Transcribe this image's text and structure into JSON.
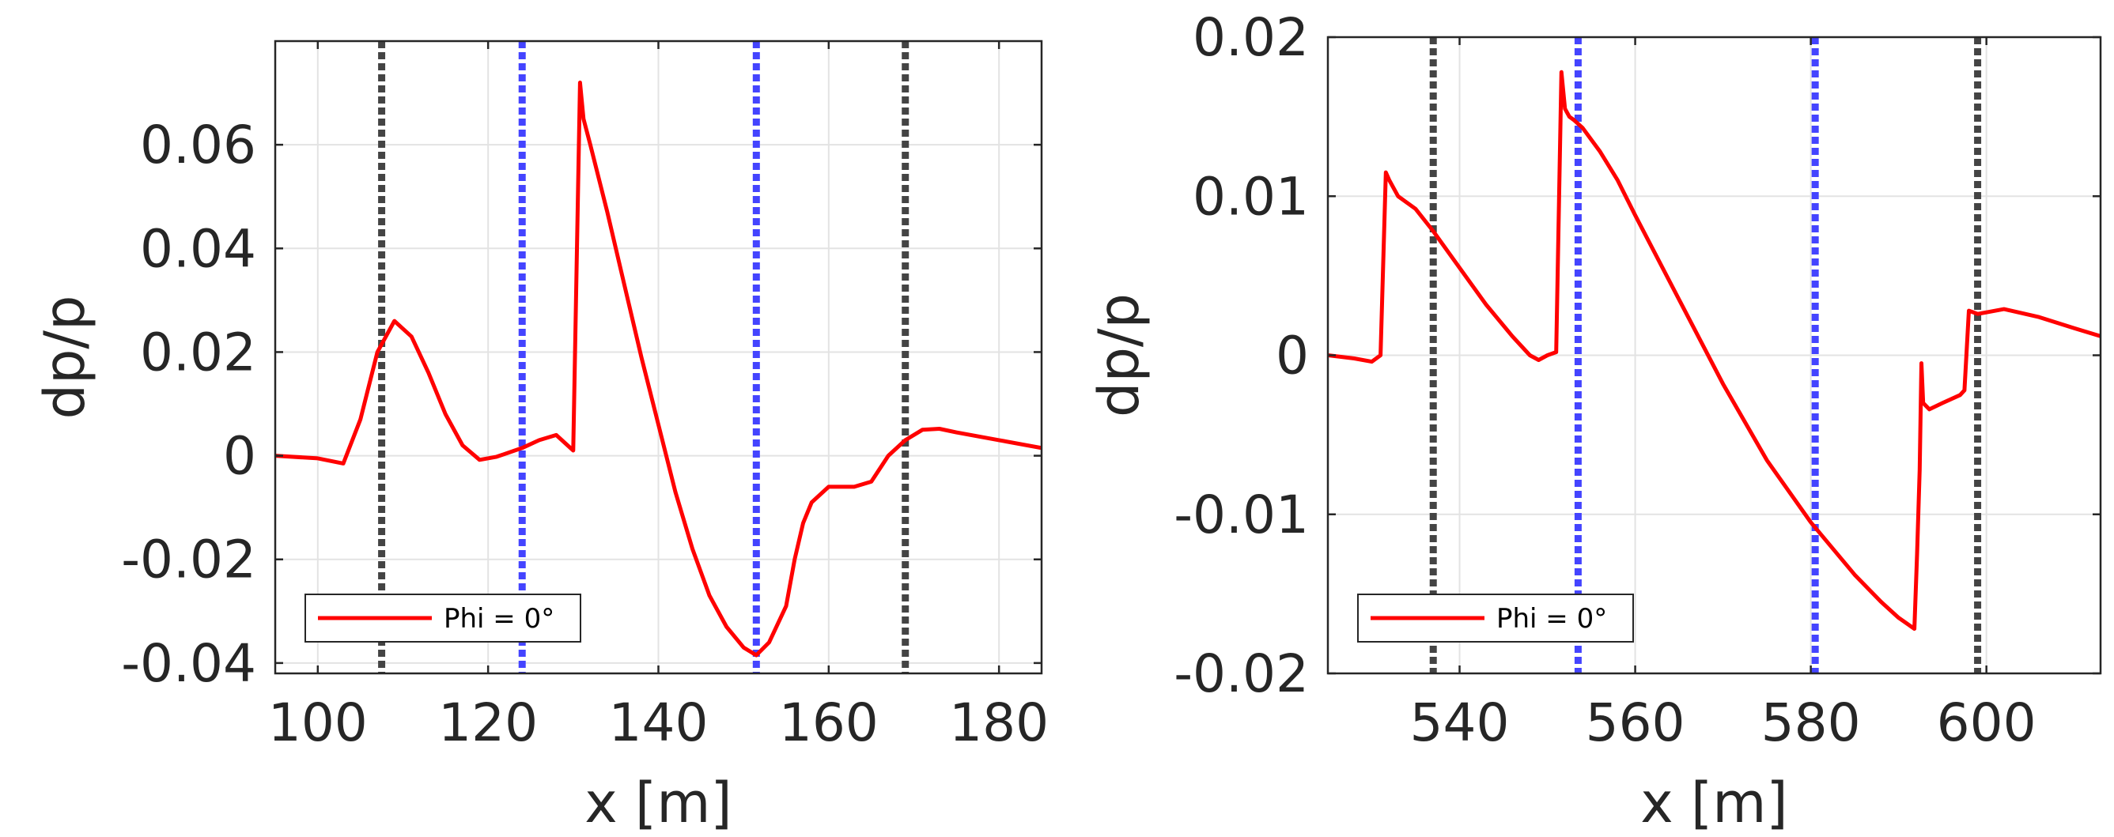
{
  "chart_data": [
    {
      "type": "line",
      "xlabel": "x [m]",
      "ylabel": "dp/p",
      "xlim": [
        95,
        185
      ],
      "ylim": [
        -0.042,
        0.08
      ],
      "xticks": [
        100,
        120,
        140,
        160,
        180
      ],
      "xtick_labels": [
        "100",
        "120",
        "140",
        "160",
        "180"
      ],
      "yticks": [
        -0.04,
        -0.02,
        0,
        0.02,
        0.04,
        0.06
      ],
      "ytick_labels": [
        "-0.04",
        "-0.02",
        "0",
        "0.02",
        "0.04",
        "0.06"
      ],
      "grid": true,
      "legend": {
        "location": "bottom-left",
        "entries": [
          "Phi = 0°"
        ]
      },
      "series": [
        {
          "name": "Phi = 0°",
          "color": "#ff0000",
          "x": [
            95,
            100,
            103,
            105,
            107,
            109,
            111,
            113,
            115,
            117,
            119,
            121,
            124,
            126,
            128,
            130,
            130.8,
            131.2,
            132,
            134,
            136,
            138,
            140,
            142,
            144,
            146,
            148,
            150,
            151.5,
            153,
            155,
            156,
            157,
            158,
            160,
            163,
            165,
            167,
            169,
            171,
            173,
            175,
            180,
            185
          ],
          "y": [
            0.0,
            -0.0005,
            -0.0015,
            0.007,
            0.02,
            0.026,
            0.023,
            0.016,
            0.008,
            0.002,
            -0.0008,
            -0.0002,
            0.0015,
            0.003,
            0.004,
            0.001,
            0.072,
            0.065,
            0.06,
            0.047,
            0.033,
            0.019,
            0.006,
            -0.007,
            -0.018,
            -0.027,
            -0.033,
            -0.037,
            -0.0385,
            -0.036,
            -0.029,
            -0.02,
            -0.013,
            -0.009,
            -0.006,
            -0.006,
            -0.005,
            0.0,
            0.003,
            0.005,
            0.0052,
            0.0045,
            0.003,
            0.0015
          ]
        }
      ],
      "vlines": [
        {
          "x": 107.5,
          "color": "#444444"
        },
        {
          "x": 124,
          "color": "#4444ff"
        },
        {
          "x": 151.5,
          "color": "#4444ff"
        },
        {
          "x": 169,
          "color": "#444444"
        }
      ]
    },
    {
      "type": "line",
      "xlabel": "x [m]",
      "ylabel": "dp/p",
      "xlim": [
        525,
        613
      ],
      "ylim": [
        -0.02,
        0.02
      ],
      "xticks": [
        540,
        560,
        580,
        600
      ],
      "xtick_labels": [
        "540",
        "560",
        "580",
        "600"
      ],
      "yticks": [
        -0.02,
        -0.01,
        0,
        0.01,
        0.02
      ],
      "ytick_labels": [
        "-0.02",
        "-0.01",
        "0",
        "0.01",
        "0.02"
      ],
      "grid": true,
      "legend": {
        "location": "bottom-left",
        "entries": [
          "Phi = 0°"
        ]
      },
      "series": [
        {
          "name": "Phi = 0°",
          "color": "#ff0000",
          "x": [
            525,
            528,
            530,
            531,
            531.6,
            532,
            533,
            535,
            537,
            540,
            543,
            546,
            548,
            549,
            550,
            551,
            551.6,
            552,
            552.5,
            553,
            554,
            556,
            558,
            560,
            565,
            570,
            575,
            580,
            585,
            588,
            590,
            591.8,
            592.1,
            592.4,
            592.6,
            592.8,
            593.5,
            595,
            597,
            597.5,
            598,
            599,
            600,
            602,
            606,
            610,
            613
          ],
          "y": [
            0.0,
            -0.0002,
            -0.0004,
            0.0,
            0.0115,
            0.011,
            0.01,
            0.0092,
            0.0078,
            0.0055,
            0.0032,
            0.0012,
            0.0,
            -0.0003,
            0.0,
            0.0002,
            0.0178,
            0.0155,
            0.015,
            0.0148,
            0.0143,
            0.0128,
            0.011,
            0.0088,
            0.0035,
            -0.0018,
            -0.0066,
            -0.0105,
            -0.0138,
            -0.0155,
            -0.0165,
            -0.0172,
            -0.0125,
            -0.0072,
            -0.0005,
            -0.003,
            -0.0034,
            -0.003,
            -0.0025,
            -0.0022,
            0.0028,
            0.0026,
            0.0027,
            0.0029,
            0.0024,
            0.0017,
            0.0012
          ]
        }
      ],
      "vlines": [
        {
          "x": 537,
          "color": "#444444"
        },
        {
          "x": 553.5,
          "color": "#4444ff"
        },
        {
          "x": 580.5,
          "color": "#4444ff"
        },
        {
          "x": 599,
          "color": "#444444"
        }
      ]
    }
  ]
}
